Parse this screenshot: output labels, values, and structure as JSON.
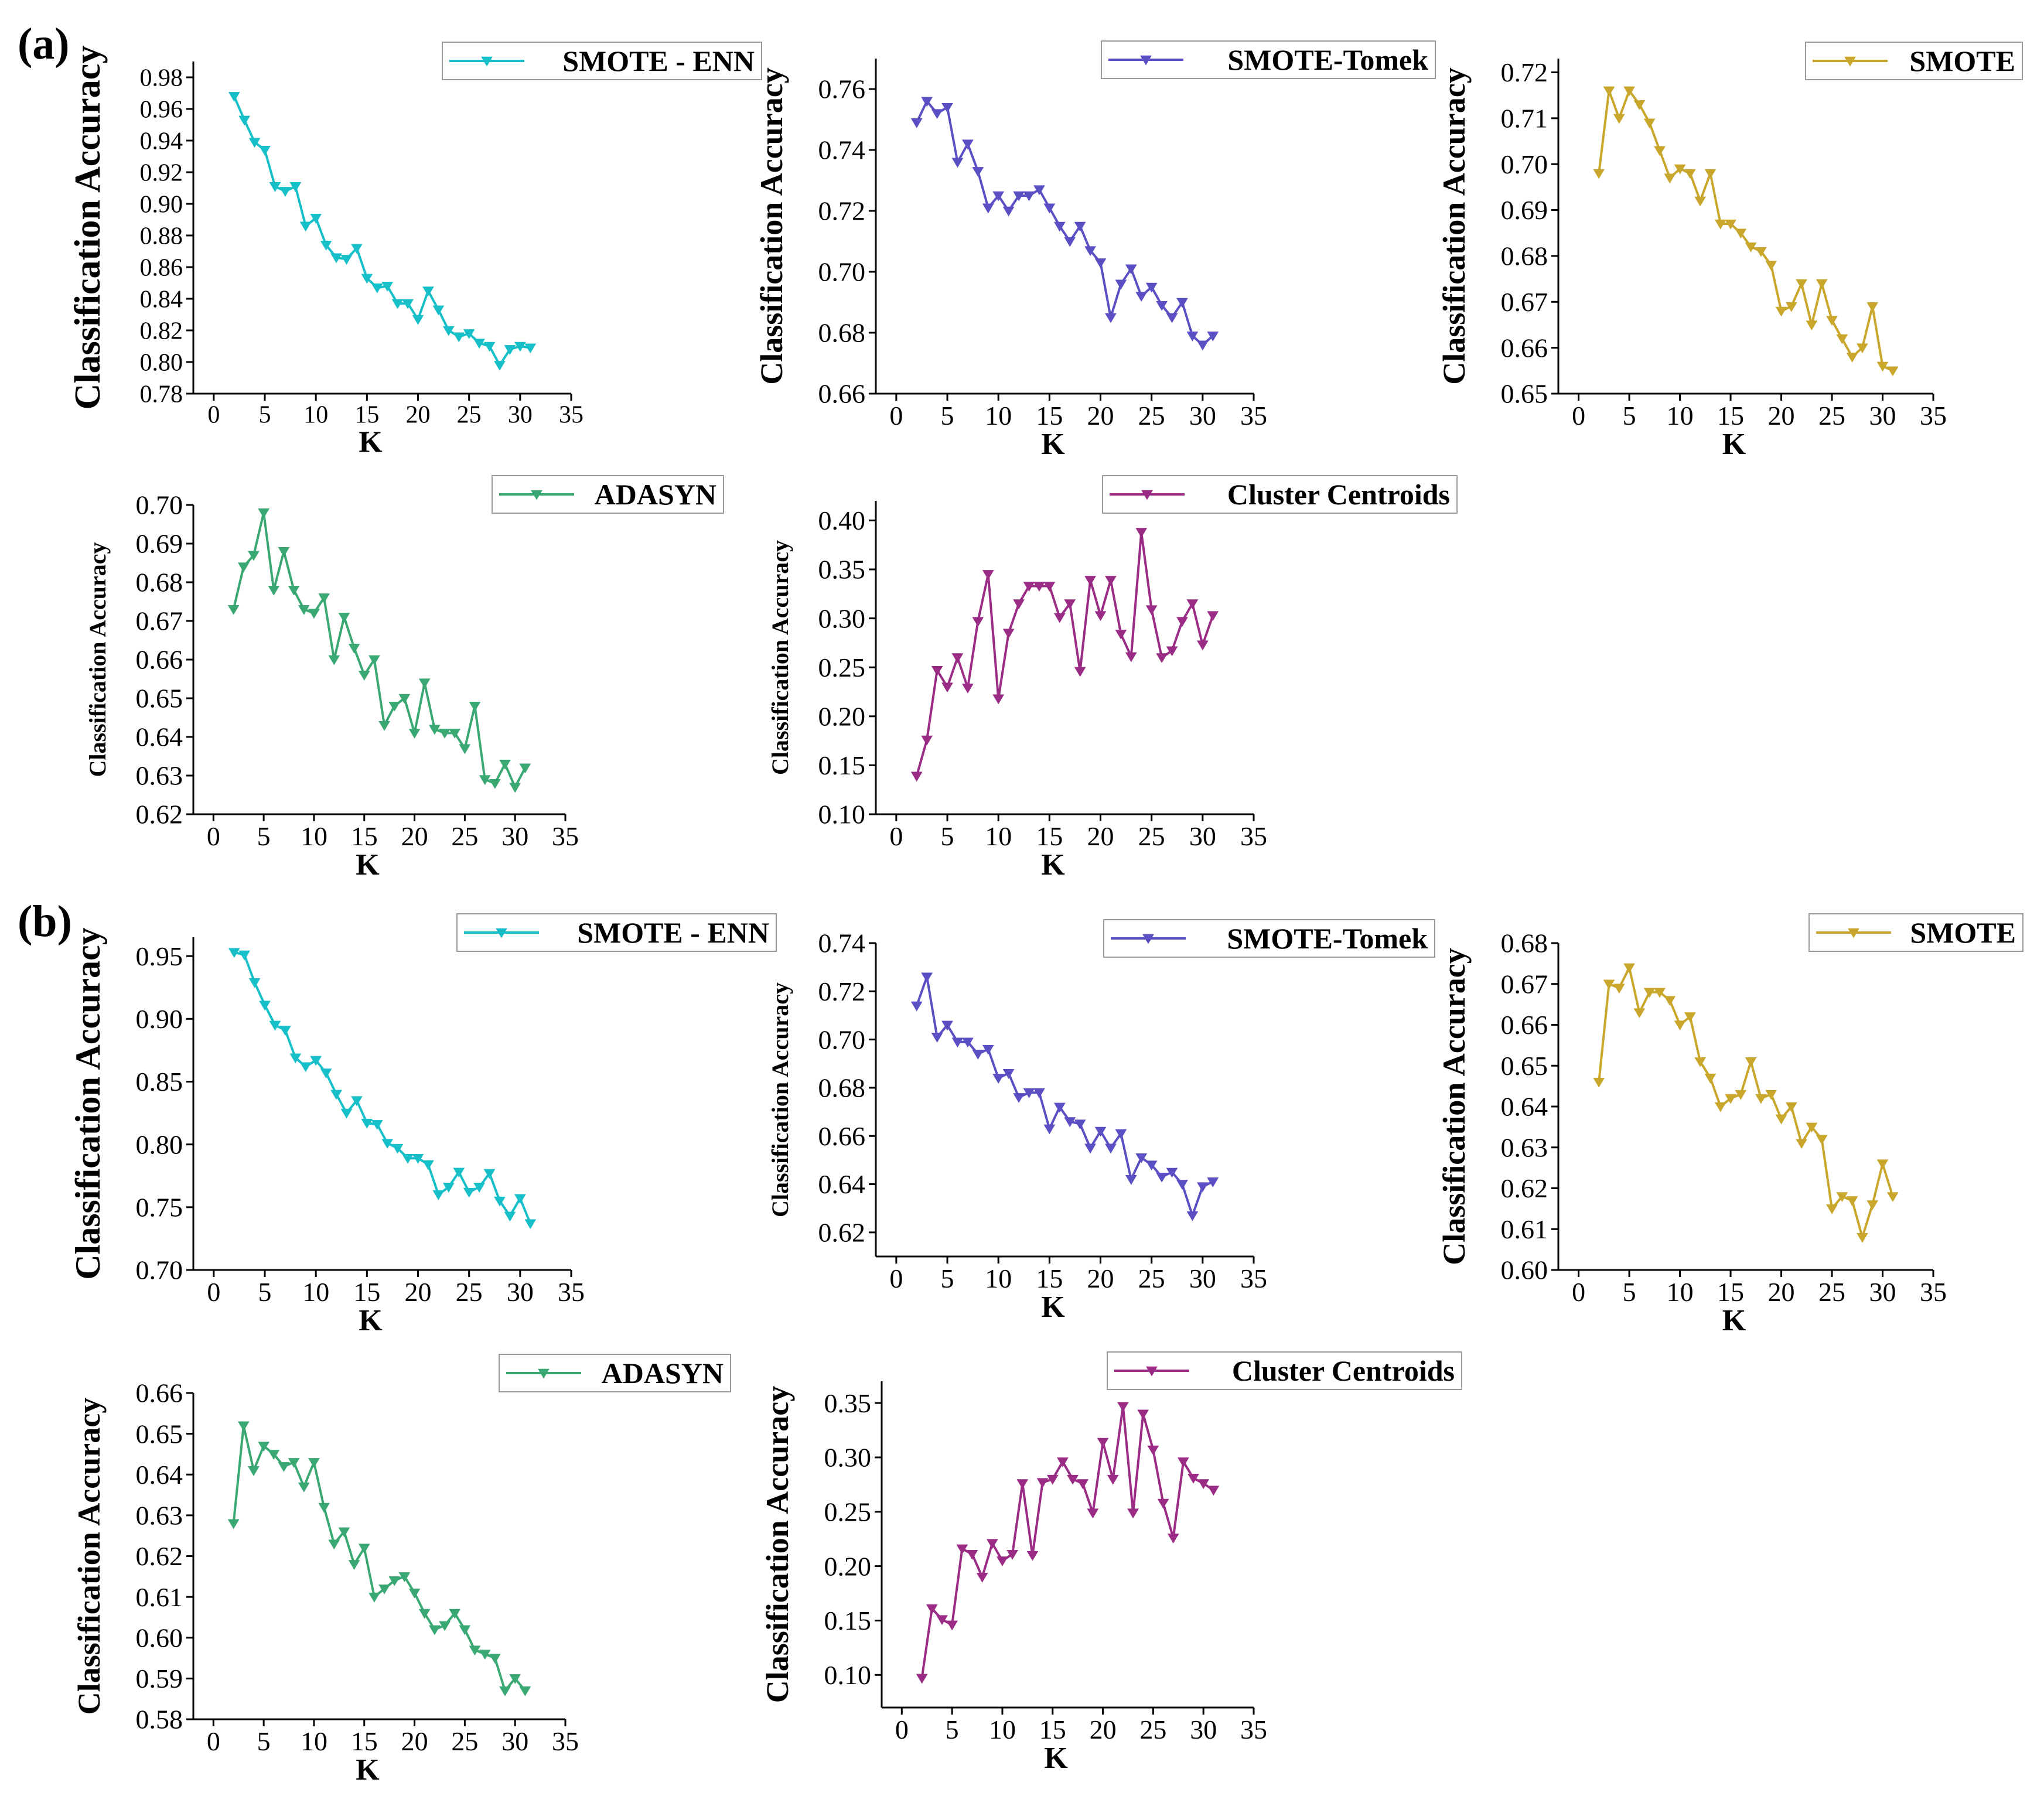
{
  "panel_labels": [
    "(a)",
    "(b)"
  ],
  "chart_data": [
    {
      "id": "a1",
      "panel": "(a)",
      "type": "line",
      "title": "",
      "legend": "SMOTE - ENN",
      "color": "#17c0c8",
      "xlabel": "K",
      "ylabel": "Classification Accuracy",
      "xlim": [
        -2,
        35
      ],
      "xticks": [
        0,
        5,
        10,
        15,
        20,
        25,
        30,
        35
      ],
      "ylim": [
        0.78,
        0.99
      ],
      "yticks": [
        0.78,
        0.8,
        0.82,
        0.84,
        0.86,
        0.88,
        0.9,
        0.92,
        0.94,
        0.96,
        0.98
      ],
      "x": [
        2,
        3,
        4,
        5,
        6,
        7,
        8,
        9,
        10,
        11,
        12,
        13,
        14,
        15,
        16,
        17,
        18,
        19,
        20,
        21,
        22,
        23,
        24,
        25,
        26,
        27,
        28,
        29,
        30,
        31
      ],
      "values": [
        0.968,
        0.953,
        0.939,
        0.934,
        0.911,
        0.908,
        0.911,
        0.886,
        0.891,
        0.874,
        0.866,
        0.865,
        0.872,
        0.853,
        0.847,
        0.848,
        0.837,
        0.837,
        0.827,
        0.845,
        0.833,
        0.82,
        0.816,
        0.818,
        0.812,
        0.81,
        0.798,
        0.808,
        0.81,
        0.809
      ]
    },
    {
      "id": "a2",
      "panel": "(a)",
      "type": "line",
      "title": "",
      "legend": "SMOTE-Tomek",
      "color": "#5b4fc4",
      "xlabel": "K",
      "ylabel": "Classification Accuracy",
      "xlim": [
        -2,
        35
      ],
      "xticks": [
        0,
        5,
        10,
        15,
        20,
        25,
        30,
        35
      ],
      "ylim": [
        0.66,
        0.77
      ],
      "yticks": [
        0.66,
        0.68,
        0.7,
        0.72,
        0.74,
        0.76
      ],
      "x": [
        2,
        3,
        4,
        5,
        6,
        7,
        8,
        9,
        10,
        11,
        12,
        13,
        14,
        15,
        16,
        17,
        18,
        19,
        20,
        21,
        22,
        23,
        24,
        25,
        26,
        27,
        28,
        29,
        30,
        31
      ],
      "values": [
        0.749,
        0.756,
        0.752,
        0.754,
        0.736,
        0.742,
        0.733,
        0.721,
        0.725,
        0.72,
        0.725,
        0.725,
        0.727,
        0.721,
        0.715,
        0.71,
        0.715,
        0.707,
        0.703,
        0.685,
        0.696,
        0.701,
        0.692,
        0.695,
        0.689,
        0.685,
        0.69,
        0.679,
        0.676,
        0.679
      ]
    },
    {
      "id": "a3",
      "panel": "(a)",
      "type": "line",
      "title": "",
      "legend": "SMOTE",
      "color": "#c9a72c",
      "xlabel": "K",
      "ylabel": "Classification Accuracy",
      "xlim": [
        -2,
        35
      ],
      "xticks": [
        0,
        5,
        10,
        15,
        20,
        25,
        30,
        35
      ],
      "ylim": [
        0.65,
        0.723
      ],
      "yticks": [
        0.65,
        0.66,
        0.67,
        0.68,
        0.69,
        0.7,
        0.71,
        0.72
      ],
      "x": [
        2,
        3,
        4,
        5,
        6,
        7,
        8,
        9,
        10,
        11,
        12,
        13,
        14,
        15,
        16,
        17,
        18,
        19,
        20,
        21,
        22,
        23,
        24,
        25,
        26,
        27,
        28,
        29,
        30,
        31
      ],
      "values": [
        0.698,
        0.716,
        0.71,
        0.716,
        0.713,
        0.709,
        0.703,
        0.697,
        0.699,
        0.698,
        0.692,
        0.698,
        0.687,
        0.687,
        0.685,
        0.682,
        0.681,
        0.678,
        0.668,
        0.669,
        0.674,
        0.665,
        0.674,
        0.666,
        0.662,
        0.658,
        0.66,
        0.669,
        0.656,
        0.655
      ]
    },
    {
      "id": "a4",
      "panel": "(a)",
      "type": "line",
      "title": "",
      "legend": "ADASYN",
      "color": "#3aa873",
      "xlabel": "K",
      "ylabel": "Classification Accuracy",
      "xlim": [
        -2,
        35
      ],
      "xticks": [
        0,
        5,
        10,
        15,
        20,
        25,
        30,
        35
      ],
      "ylim": [
        0.62,
        0.7
      ],
      "yticks": [
        0.62,
        0.63,
        0.64,
        0.65,
        0.66,
        0.67,
        0.68,
        0.69,
        0.7
      ],
      "x": [
        2,
        3,
        4,
        5,
        6,
        7,
        8,
        9,
        10,
        11,
        12,
        13,
        14,
        15,
        16,
        17,
        18,
        19,
        20,
        21,
        22,
        23,
        24,
        25,
        26,
        27,
        28,
        29,
        30,
        31
      ],
      "values": [
        0.673,
        0.684,
        0.687,
        0.698,
        0.678,
        0.688,
        0.678,
        0.673,
        0.672,
        0.676,
        0.66,
        0.671,
        0.663,
        0.656,
        0.66,
        0.643,
        0.648,
        0.65,
        0.641,
        0.654,
        0.642,
        0.641,
        0.641,
        0.637,
        0.648,
        0.629,
        0.628,
        0.633,
        0.627,
        0.632
      ]
    },
    {
      "id": "a5",
      "panel": "(a)",
      "type": "line",
      "title": "",
      "legend": "Cluster Centroids",
      "color": "#9a2c86",
      "xlabel": "K",
      "ylabel": "Classification Accuracy",
      "xlim": [
        -2,
        35
      ],
      "xticks": [
        0,
        5,
        10,
        15,
        20,
        25,
        30,
        35
      ],
      "ylim": [
        0.1,
        0.42
      ],
      "yticks": [
        0.1,
        0.15,
        0.2,
        0.25,
        0.3,
        0.35,
        0.4
      ],
      "x": [
        2,
        3,
        4,
        5,
        6,
        7,
        8,
        9,
        10,
        11,
        12,
        13,
        14,
        15,
        16,
        17,
        18,
        19,
        20,
        21,
        22,
        23,
        24,
        25,
        26,
        27,
        28,
        29,
        30,
        31
      ],
      "values": [
        0.139,
        0.176,
        0.247,
        0.23,
        0.26,
        0.229,
        0.297,
        0.345,
        0.218,
        0.285,
        0.315,
        0.333,
        0.333,
        0.333,
        0.301,
        0.315,
        0.246,
        0.339,
        0.303,
        0.339,
        0.284,
        0.261,
        0.388,
        0.309,
        0.26,
        0.267,
        0.297,
        0.315,
        0.273,
        0.303
      ]
    },
    {
      "id": "b1",
      "panel": "(b)",
      "type": "line",
      "title": "",
      "legend": "SMOTE - ENN",
      "color": "#17c0c8",
      "xlabel": "K",
      "ylabel": "Classification Accuracy",
      "xlim": [
        -2,
        35
      ],
      "xticks": [
        0,
        5,
        10,
        15,
        20,
        25,
        30,
        35
      ],
      "ylim": [
        0.7,
        0.965
      ],
      "yticks": [
        0.7,
        0.75,
        0.8,
        0.85,
        0.9,
        0.95
      ],
      "x": [
        2,
        3,
        4,
        5,
        6,
        7,
        8,
        9,
        10,
        11,
        12,
        13,
        14,
        15,
        16,
        17,
        18,
        19,
        20,
        21,
        22,
        23,
        24,
        25,
        26,
        27,
        28,
        29,
        30,
        31
      ],
      "values": [
        0.953,
        0.951,
        0.929,
        0.911,
        0.895,
        0.891,
        0.869,
        0.862,
        0.867,
        0.857,
        0.84,
        0.825,
        0.835,
        0.817,
        0.816,
        0.801,
        0.797,
        0.789,
        0.789,
        0.784,
        0.76,
        0.766,
        0.778,
        0.762,
        0.766,
        0.777,
        0.755,
        0.743,
        0.757,
        0.737
      ]
    },
    {
      "id": "b2",
      "panel": "(b)",
      "type": "line",
      "title": "",
      "legend": "SMOTE-Tomek",
      "color": "#5b4fc4",
      "xlabel": "K",
      "ylabel": "Classification Accuracy",
      "xlim": [
        -2,
        35
      ],
      "xticks": [
        0,
        5,
        10,
        15,
        20,
        25,
        30,
        35
      ],
      "ylim": [
        0.61,
        0.74
      ],
      "yticks": [
        0.62,
        0.64,
        0.66,
        0.68,
        0.7,
        0.72,
        0.74
      ],
      "x": [
        2,
        3,
        4,
        5,
        6,
        7,
        8,
        9,
        10,
        11,
        12,
        13,
        14,
        15,
        16,
        17,
        18,
        19,
        20,
        21,
        22,
        23,
        24,
        25,
        26,
        27,
        28,
        29,
        30,
        31
      ],
      "values": [
        0.714,
        0.726,
        0.701,
        0.706,
        0.699,
        0.699,
        0.694,
        0.696,
        0.684,
        0.686,
        0.676,
        0.678,
        0.678,
        0.663,
        0.672,
        0.666,
        0.665,
        0.655,
        0.662,
        0.655,
        0.661,
        0.642,
        0.651,
        0.648,
        0.643,
        0.645,
        0.64,
        0.627,
        0.639,
        0.641
      ]
    },
    {
      "id": "b3",
      "panel": "(b)",
      "type": "line",
      "title": "",
      "legend": "SMOTE",
      "color": "#c9a72c",
      "xlabel": "K",
      "ylabel": "Classification Accuracy",
      "xlim": [
        -2,
        35
      ],
      "xticks": [
        0,
        5,
        10,
        15,
        20,
        25,
        30,
        35
      ],
      "ylim": [
        0.6,
        0.68
      ],
      "yticks": [
        0.6,
        0.61,
        0.62,
        0.63,
        0.64,
        0.65,
        0.66,
        0.67,
        0.68
      ],
      "x": [
        2,
        3,
        4,
        5,
        6,
        7,
        8,
        9,
        10,
        11,
        12,
        13,
        14,
        15,
        16,
        17,
        18,
        19,
        20,
        21,
        22,
        23,
        24,
        25,
        26,
        27,
        28,
        29,
        30,
        31
      ],
      "values": [
        0.646,
        0.67,
        0.669,
        0.674,
        0.663,
        0.668,
        0.668,
        0.666,
        0.66,
        0.662,
        0.651,
        0.647,
        0.64,
        0.642,
        0.643,
        0.651,
        0.642,
        0.643,
        0.637,
        0.64,
        0.631,
        0.635,
        0.632,
        0.615,
        0.618,
        0.617,
        0.608,
        0.616,
        0.626,
        0.618
      ]
    },
    {
      "id": "b4",
      "panel": "(b)",
      "type": "line",
      "title": "",
      "legend": "ADASYN",
      "color": "#3aa873",
      "xlabel": "K",
      "ylabel": "Classification Accuracy",
      "xlim": [
        -2,
        35
      ],
      "xticks": [
        0,
        5,
        10,
        15,
        20,
        25,
        30,
        35
      ],
      "ylim": [
        0.58,
        0.66
      ],
      "yticks": [
        0.58,
        0.59,
        0.6,
        0.61,
        0.62,
        0.63,
        0.64,
        0.65,
        0.66
      ],
      "x": [
        2,
        3,
        4,
        5,
        6,
        7,
        8,
        9,
        10,
        11,
        12,
        13,
        14,
        15,
        16,
        17,
        18,
        19,
        20,
        21,
        22,
        23,
        24,
        25,
        26,
        27,
        28,
        29,
        30,
        31
      ],
      "values": [
        0.628,
        0.652,
        0.641,
        0.647,
        0.645,
        0.642,
        0.643,
        0.637,
        0.643,
        0.632,
        0.623,
        0.626,
        0.618,
        0.622,
        0.61,
        0.612,
        0.614,
        0.615,
        0.611,
        0.606,
        0.602,
        0.603,
        0.606,
        0.602,
        0.597,
        0.596,
        0.595,
        0.587,
        0.59,
        0.587
      ]
    },
    {
      "id": "b5",
      "panel": "(b)",
      "type": "line",
      "title": "",
      "legend": "Cluster Centroids",
      "color": "#9a2c86",
      "xlabel": "K",
      "ylabel": "Classification Accuracy",
      "xlim": [
        -2,
        35
      ],
      "xticks": [
        0,
        5,
        10,
        15,
        20,
        25,
        30,
        35
      ],
      "ylim": [
        0.07,
        0.37
      ],
      "yticks": [
        0.1,
        0.15,
        0.2,
        0.25,
        0.3,
        0.35
      ],
      "x": [
        2,
        3,
        4,
        5,
        6,
        7,
        8,
        9,
        10,
        11,
        12,
        13,
        14,
        15,
        16,
        17,
        18,
        19,
        20,
        21,
        22,
        23,
        24,
        25,
        26,
        27,
        28,
        29,
        30,
        31
      ],
      "values": [
        0.097,
        0.161,
        0.151,
        0.146,
        0.216,
        0.211,
        0.19,
        0.221,
        0.205,
        0.211,
        0.276,
        0.21,
        0.277,
        0.28,
        0.296,
        0.28,
        0.276,
        0.249,
        0.314,
        0.28,
        0.347,
        0.249,
        0.34,
        0.307,
        0.258,
        0.226,
        0.296,
        0.281,
        0.276,
        0.27
      ]
    }
  ]
}
